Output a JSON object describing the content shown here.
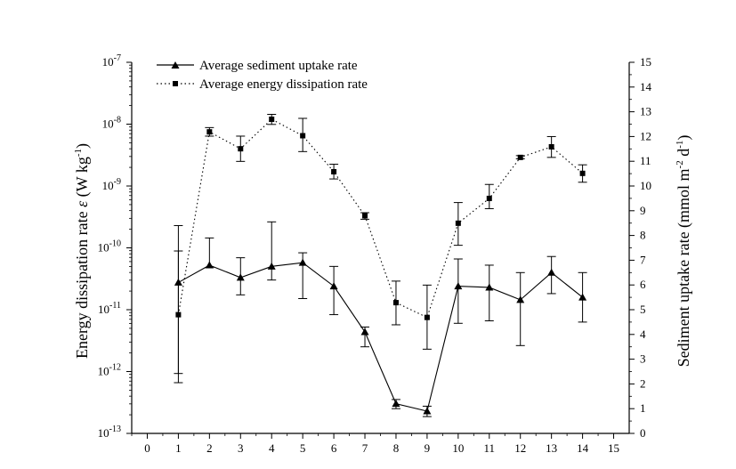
{
  "chart_data": {
    "type": "line",
    "xlabel": "",
    "xlim": [
      -0.5,
      15.5
    ],
    "x_ticks": [
      "0",
      "1",
      "2",
      "3",
      "4",
      "5",
      "6",
      "7",
      "8",
      "9",
      "10",
      "11",
      "12",
      "13",
      "14",
      "15"
    ],
    "y_left": {
      "label_text": "Energy dissipation rate ε (W kg⁻¹)",
      "label_parts": {
        "main": "Energy dissipation rate ",
        "symbol": "ε",
        "open": " (W kg",
        "sup": "-1",
        "close": ")"
      },
      "scale": "log",
      "lim": [
        1e-13,
        1e-07
      ],
      "ticks": [
        {
          "value": 1e-13,
          "base": "10",
          "exp": "-13"
        },
        {
          "value": 1e-12,
          "base": "10",
          "exp": "-12"
        },
        {
          "value": 1e-11,
          "base": "10",
          "exp": "-11"
        },
        {
          "value": 1e-10,
          "base": "10",
          "exp": "-10"
        },
        {
          "value": 1e-09,
          "base": "10",
          "exp": "-9"
        },
        {
          "value": 1e-08,
          "base": "10",
          "exp": "-8"
        },
        {
          "value": 1e-07,
          "base": "10",
          "exp": "-7"
        }
      ]
    },
    "y_right": {
      "label_text": "Sediment uptake rate (mmol m⁻² d⁻¹)",
      "label_parts": {
        "main": "Sediment uptake rate (mmol m",
        "sup1": "-2",
        "mid": " d",
        "sup2": "-1",
        "close": ")"
      },
      "scale": "linear",
      "lim": [
        0,
        15
      ],
      "ticks": [
        "0",
        "1",
        "2",
        "3",
        "4",
        "5",
        "6",
        "7",
        "8",
        "9",
        "10",
        "11",
        "12",
        "13",
        "14",
        "15"
      ]
    },
    "legend_position": "top-left",
    "series": [
      {
        "name": "Average sediment uptake rate",
        "axis": "right",
        "marker": "triangle",
        "line_style": "solid",
        "x": [
          1,
          2,
          3,
          4,
          5,
          6,
          7,
          8,
          9,
          10,
          11,
          12,
          13,
          14
        ],
        "y": [
          6.1,
          6.8,
          6.3,
          6.75,
          6.9,
          5.95,
          4.1,
          1.2,
          0.9,
          5.95,
          5.9,
          5.4,
          6.5,
          5.5
        ],
        "err_low": [
          2.05,
          6.7,
          5.6,
          6.2,
          5.45,
          4.8,
          3.5,
          1.0,
          0.68,
          4.45,
          4.55,
          3.55,
          5.65,
          4.5
        ],
        "err_high": [
          8.4,
          7.9,
          7.1,
          8.55,
          7.3,
          6.75,
          4.3,
          1.37,
          1.1,
          7.05,
          6.8,
          6.5,
          7.15,
          6.5
        ]
      },
      {
        "name": "Average energy dissipation rate",
        "axis": "left",
        "marker": "square",
        "line_style": "dotted",
        "x": [
          1,
          2,
          3,
          4,
          5,
          6,
          7,
          8,
          9,
          10,
          11,
          12,
          13,
          14
        ],
        "y": [
          8.3e-12,
          7.5e-09,
          4e-09,
          1.2e-08,
          6.5e-09,
          1.7e-09,
          3.3e-10,
          1.3e-11,
          7.5e-12,
          2.5e-10,
          6.3e-10,
          2.9e-09,
          4.3e-09,
          1.6e-09
        ],
        "err_low": [
          9.3e-13,
          6.4e-09,
          2.5e-09,
          9.9e-09,
          3.6e-09,
          1.3e-09,
          2.9e-10,
          5.7e-12,
          2.3e-12,
          1.1e-10,
          4.3e-10,
          2.75e-09,
          2.9e-09,
          1.15e-09
        ],
        "err_high": [
          8.9e-11,
          8.8e-09,
          6.4e-09,
          1.44e-08,
          1.24e-08,
          2.25e-09,
          3.7e-10,
          2.9e-11,
          2.5e-11,
          5.4e-10,
          1.06e-09,
          3.1e-09,
          6.3e-09,
          2.2e-09
        ]
      }
    ]
  }
}
